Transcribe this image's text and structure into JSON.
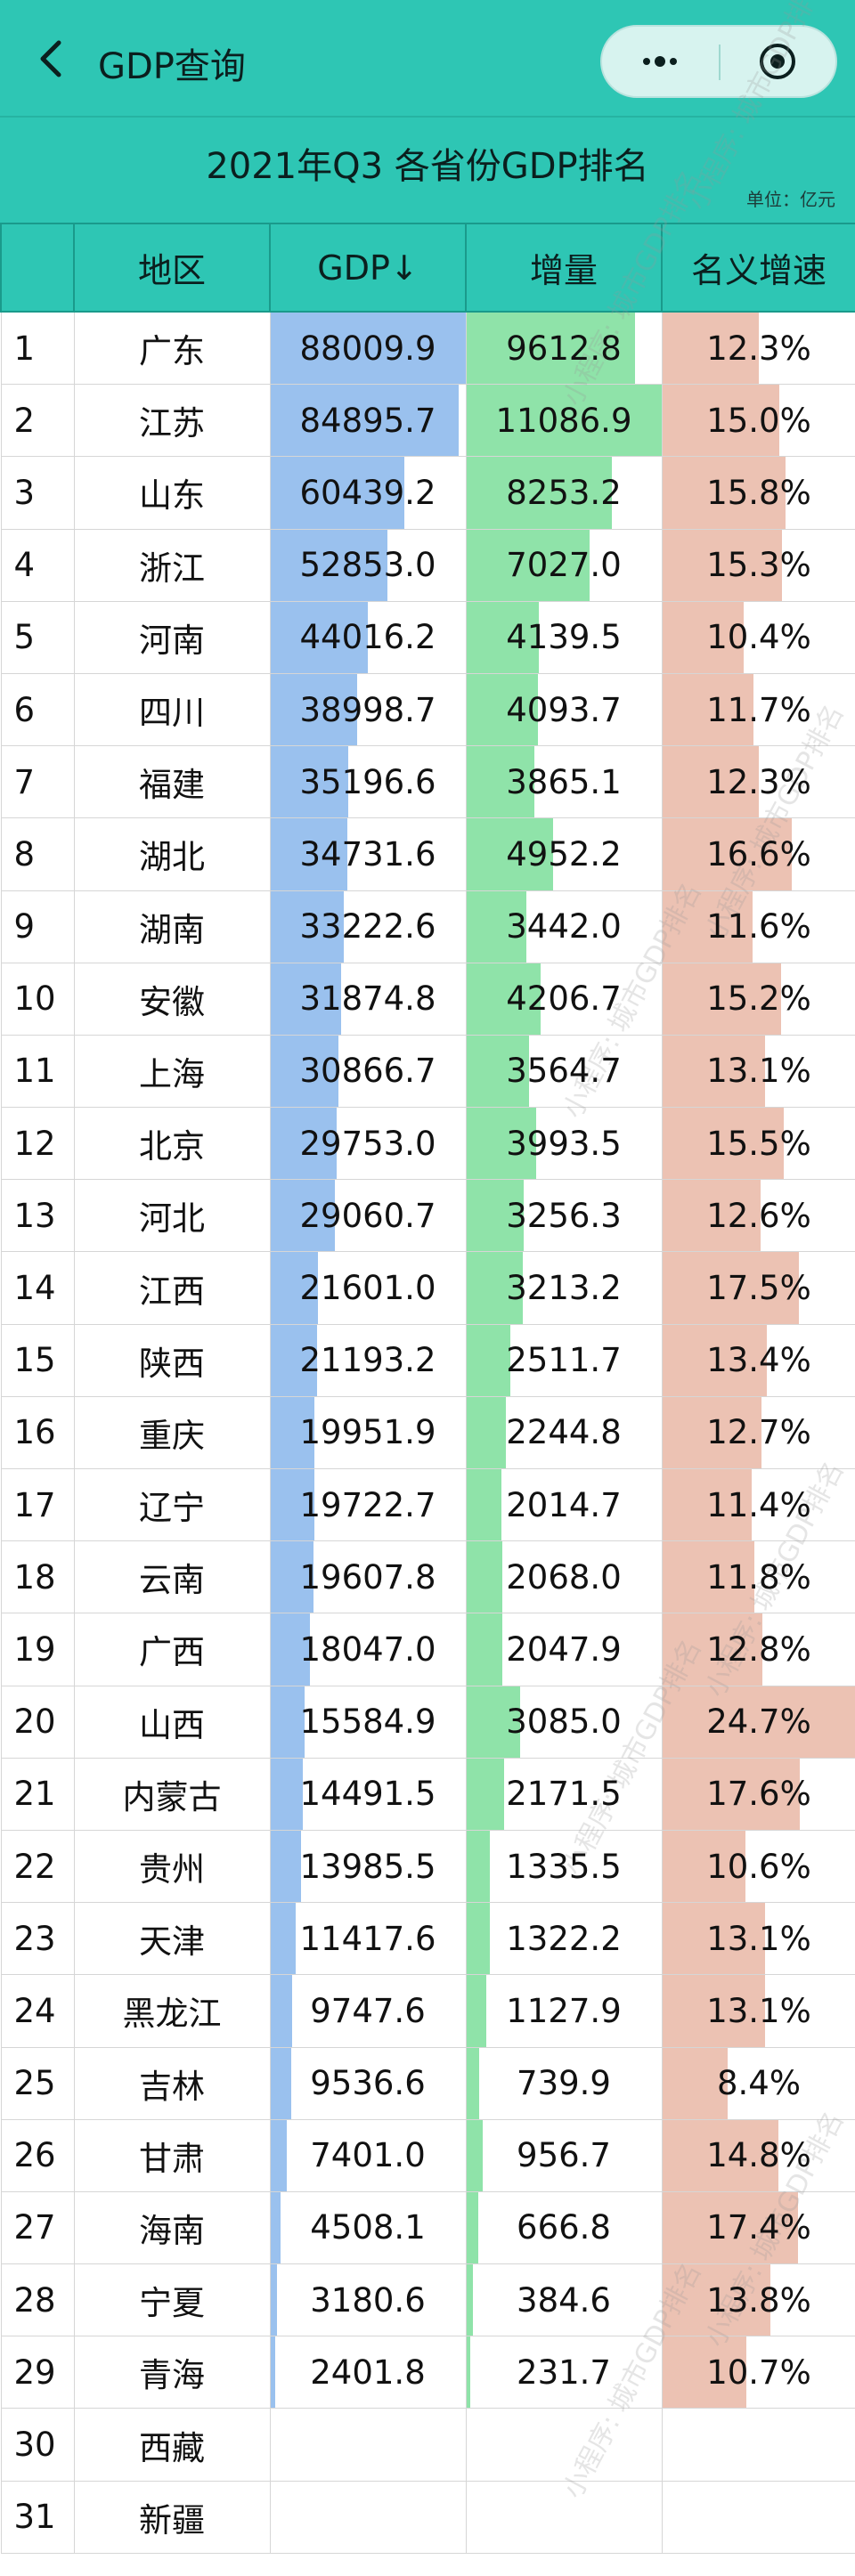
{
  "app": {
    "title": "GDP查询"
  },
  "report": {
    "title": "2021年Q3 各省份GDP排名",
    "unit": "单位：亿元"
  },
  "columns": {
    "rank": "",
    "region": "地区",
    "gdp": "GDP↓",
    "increase": "增量",
    "growth": "名义增速"
  },
  "rows": [
    {
      "rank": "1",
      "region": "广东",
      "gdp": "88009.9",
      "increase": "9612.8",
      "growth": "12.3%"
    },
    {
      "rank": "2",
      "region": "江苏",
      "gdp": "84895.7",
      "increase": "11086.9",
      "growth": "15.0%"
    },
    {
      "rank": "3",
      "region": "山东",
      "gdp": "60439.2",
      "increase": "8253.2",
      "growth": "15.8%"
    },
    {
      "rank": "4",
      "region": "浙江",
      "gdp": "52853.0",
      "increase": "7027.0",
      "growth": "15.3%"
    },
    {
      "rank": "5",
      "region": "河南",
      "gdp": "44016.2",
      "increase": "4139.5",
      "growth": "10.4%"
    },
    {
      "rank": "6",
      "region": "四川",
      "gdp": "38998.7",
      "increase": "4093.7",
      "growth": "11.7%"
    },
    {
      "rank": "7",
      "region": "福建",
      "gdp": "35196.6",
      "increase": "3865.1",
      "growth": "12.3%"
    },
    {
      "rank": "8",
      "region": "湖北",
      "gdp": "34731.6",
      "increase": "4952.2",
      "growth": "16.6%"
    },
    {
      "rank": "9",
      "region": "湖南",
      "gdp": "33222.6",
      "increase": "3442.0",
      "growth": "11.6%"
    },
    {
      "rank": "10",
      "region": "安徽",
      "gdp": "31874.8",
      "increase": "4206.7",
      "growth": "15.2%"
    },
    {
      "rank": "11",
      "region": "上海",
      "gdp": "30866.7",
      "increase": "3564.7",
      "growth": "13.1%"
    },
    {
      "rank": "12",
      "region": "北京",
      "gdp": "29753.0",
      "increase": "3993.5",
      "growth": "15.5%"
    },
    {
      "rank": "13",
      "region": "河北",
      "gdp": "29060.7",
      "increase": "3256.3",
      "growth": "12.6%"
    },
    {
      "rank": "14",
      "region": "江西",
      "gdp": "21601.0",
      "increase": "3213.2",
      "growth": "17.5%"
    },
    {
      "rank": "15",
      "region": "陕西",
      "gdp": "21193.2",
      "increase": "2511.7",
      "growth": "13.4%"
    },
    {
      "rank": "16",
      "region": "重庆",
      "gdp": "19951.9",
      "increase": "2244.8",
      "growth": "12.7%"
    },
    {
      "rank": "17",
      "region": "辽宁",
      "gdp": "19722.7",
      "increase": "2014.7",
      "growth": "11.4%"
    },
    {
      "rank": "18",
      "region": "云南",
      "gdp": "19607.8",
      "increase": "2068.0",
      "growth": "11.8%"
    },
    {
      "rank": "19",
      "region": "广西",
      "gdp": "18047.0",
      "increase": "2047.9",
      "growth": "12.8%"
    },
    {
      "rank": "20",
      "region": "山西",
      "gdp": "15584.9",
      "increase": "3085.0",
      "growth": "24.7%"
    },
    {
      "rank": "21",
      "region": "内蒙古",
      "gdp": "14491.5",
      "increase": "2171.5",
      "growth": "17.6%"
    },
    {
      "rank": "22",
      "region": "贵州",
      "gdp": "13985.5",
      "increase": "1335.5",
      "growth": "10.6%"
    },
    {
      "rank": "23",
      "region": "天津",
      "gdp": "11417.6",
      "increase": "1322.2",
      "growth": "13.1%"
    },
    {
      "rank": "24",
      "region": "黑龙江",
      "gdp": "9747.6",
      "increase": "1127.9",
      "growth": "13.1%"
    },
    {
      "rank": "25",
      "region": "吉林",
      "gdp": "9536.6",
      "increase": "739.9",
      "growth": "8.4%"
    },
    {
      "rank": "26",
      "region": "甘肃",
      "gdp": "7401.0",
      "increase": "956.7",
      "growth": "14.8%"
    },
    {
      "rank": "27",
      "region": "海南",
      "gdp": "4508.1",
      "increase": "666.8",
      "growth": "17.4%"
    },
    {
      "rank": "28",
      "region": "宁夏",
      "gdp": "3180.6",
      "increase": "384.6",
      "growth": "13.8%"
    },
    {
      "rank": "29",
      "region": "青海",
      "gdp": "2401.8",
      "increase": "231.7",
      "growth": "10.7%"
    },
    {
      "rank": "30",
      "region": "西藏",
      "gdp": "",
      "increase": "",
      "growth": ""
    },
    {
      "rank": "31",
      "region": "新疆",
      "gdp": "",
      "increase": "",
      "growth": ""
    }
  ],
  "watermark": "小程序: 城市GDP排名",
  "colors": {
    "header": "#2ec6b4",
    "gdp_bar": "#9ac1ee",
    "increase_bar": "#8fe3a9",
    "growth_bar": "#ecc2b3"
  },
  "icons": {
    "back": "chevron-left-icon",
    "more": "more-dots-icon",
    "close": "target-circle-icon"
  }
}
